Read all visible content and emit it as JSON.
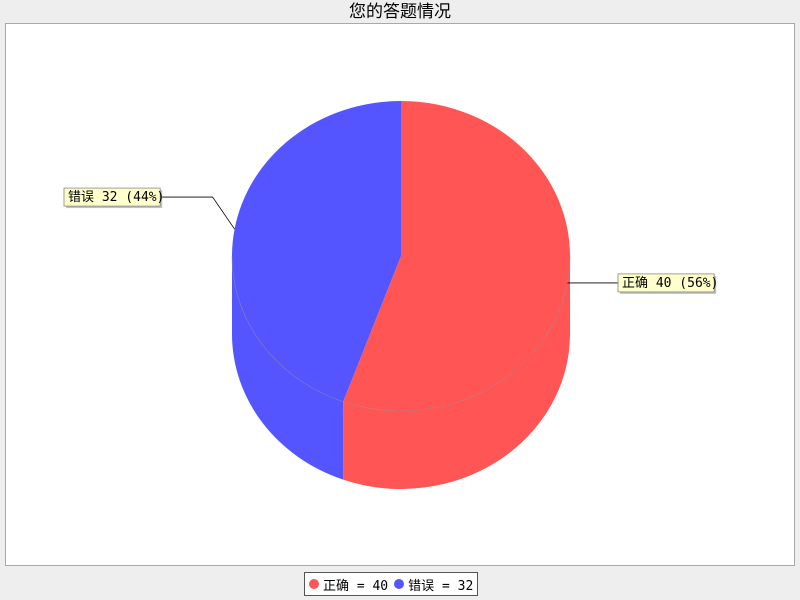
{
  "title": "您的答题情况",
  "chart_data": {
    "type": "pie",
    "title": "您的答题情况",
    "slices": [
      {
        "name": "正确",
        "value": 40,
        "percent": "56%",
        "label": "正确 40 (56%)",
        "legend": "正确 = 40",
        "color": "#ff5555"
      },
      {
        "name": "错误",
        "value": 32,
        "percent": "44%",
        "label": "错误 32 (44%)",
        "legend": "错误 = 32",
        "color": "#5555ff"
      }
    ],
    "legend_position": "bottom"
  }
}
